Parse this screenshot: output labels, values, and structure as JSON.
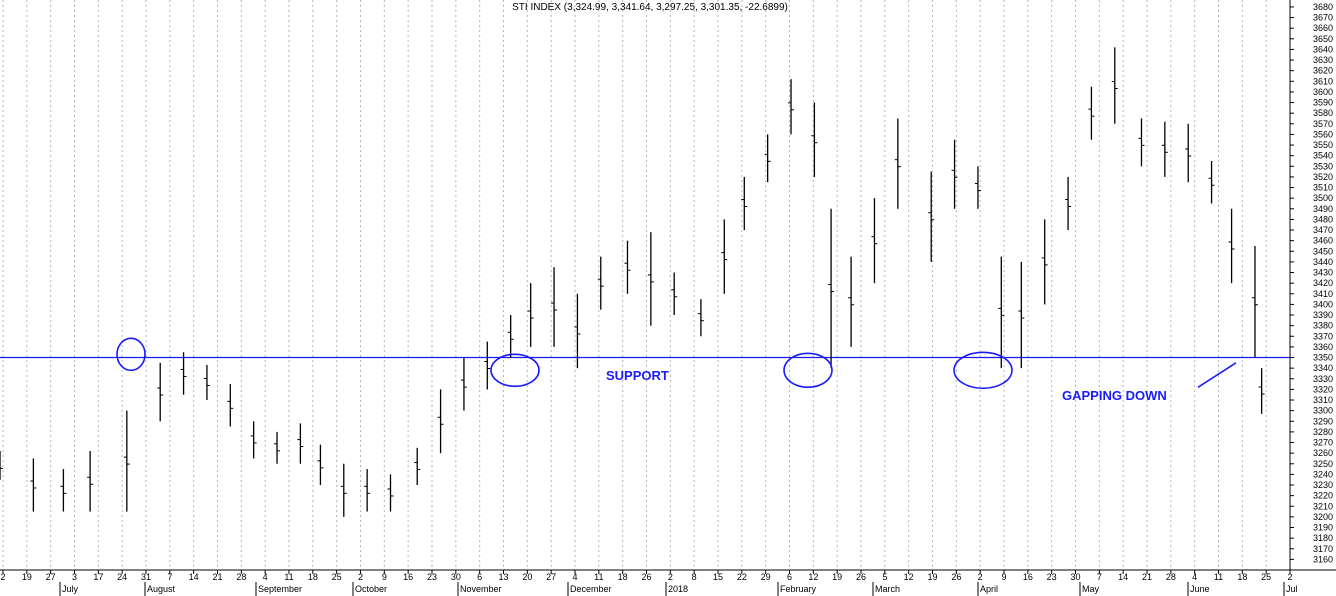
{
  "chart_data": {
    "type": "ohlc",
    "title": "STI INDEX (3,324.99, 3,341.64, 3,297.25, 3,301.35, -22.6899)",
    "ylim": [
      3150,
      3685
    ],
    "y_ticks": [
      3160,
      3170,
      3180,
      3190,
      3200,
      3210,
      3220,
      3230,
      3240,
      3250,
      3260,
      3270,
      3280,
      3290,
      3300,
      3310,
      3320,
      3330,
      3340,
      3350,
      3360,
      3370,
      3380,
      3390,
      3400,
      3410,
      3420,
      3430,
      3440,
      3450,
      3460,
      3470,
      3480,
      3490,
      3500,
      3510,
      3520,
      3530,
      3540,
      3550,
      3560,
      3570,
      3580,
      3590,
      3600,
      3610,
      3620,
      3630,
      3640,
      3650,
      3660,
      3670,
      3680
    ],
    "x_days": [
      "2",
      "19",
      "27",
      "3",
      "17",
      "24",
      "31",
      "7",
      "14",
      "21",
      "28",
      "4",
      "11",
      "18",
      "25",
      "2",
      "9",
      "16",
      "23",
      "30",
      "6",
      "13",
      "20",
      "27",
      "4",
      "11",
      "18",
      "26",
      "2",
      "8",
      "15",
      "22",
      "29",
      "6",
      "12",
      "19",
      "26",
      "5",
      "12",
      "19",
      "26",
      "2",
      "9",
      "16",
      "23",
      "30",
      "7",
      "14",
      "21",
      "28",
      "4",
      "11",
      "18",
      "25",
      "2"
    ],
    "x_months": [
      "July",
      "August",
      "September",
      "October",
      "November",
      "December",
      "2018",
      "February",
      "March",
      "April",
      "May",
      "June",
      "Jul"
    ],
    "support_level": 3350,
    "annotations": [
      "SUPPORT",
      "GAPPING DOWN"
    ],
    "colors": {
      "bars": "#000000",
      "annotation": "#1a1aff",
      "grid": "#b5b5b5"
    },
    "series": [
      {
        "date": "2017-06-30",
        "high": 3262,
        "low": 3235
      },
      {
        "date": "2017-07-10",
        "high": 3255,
        "low": 3205
      },
      {
        "date": "2017-07-19",
        "high": 3245,
        "low": 3205
      },
      {
        "date": "2017-07-27",
        "high": 3262,
        "low": 3205
      },
      {
        "date": "2017-08-07",
        "high": 3300,
        "low": 3205
      },
      {
        "date": "2017-08-17",
        "high": 3345,
        "low": 3290
      },
      {
        "date": "2017-08-24",
        "high": 3355,
        "low": 3315
      },
      {
        "date": "2017-08-31",
        "high": 3343,
        "low": 3310
      },
      {
        "date": "2017-09-07",
        "high": 3325,
        "low": 3285
      },
      {
        "date": "2017-09-14",
        "high": 3290,
        "low": 3255
      },
      {
        "date": "2017-09-21",
        "high": 3280,
        "low": 3250
      },
      {
        "date": "2017-09-28",
        "high": 3288,
        "low": 3250
      },
      {
        "date": "2017-10-04",
        "high": 3268,
        "low": 3230
      },
      {
        "date": "2017-10-11",
        "high": 3250,
        "low": 3200
      },
      {
        "date": "2017-10-18",
        "high": 3245,
        "low": 3205
      },
      {
        "date": "2017-10-25",
        "high": 3240,
        "low": 3205
      },
      {
        "date": "2017-11-02",
        "high": 3265,
        "low": 3230
      },
      {
        "date": "2017-11-09",
        "high": 3320,
        "low": 3260
      },
      {
        "date": "2017-11-16",
        "high": 3350,
        "low": 3300
      },
      {
        "date": "2017-11-23",
        "high": 3365,
        "low": 3320
      },
      {
        "date": "2017-11-30",
        "high": 3390,
        "low": 3350
      },
      {
        "date": "2017-12-06",
        "high": 3420,
        "low": 3360
      },
      {
        "date": "2017-12-13",
        "high": 3435,
        "low": 3360
      },
      {
        "date": "2017-12-20",
        "high": 3410,
        "low": 3340
      },
      {
        "date": "2017-12-27",
        "high": 3445,
        "low": 3395
      },
      {
        "date": "2018-01-04",
        "high": 3460,
        "low": 3410
      },
      {
        "date": "2018-01-11",
        "high": 3468,
        "low": 3380
      },
      {
        "date": "2018-01-18",
        "high": 3430,
        "low": 3390
      },
      {
        "date": "2018-01-26",
        "high": 3405,
        "low": 3370
      },
      {
        "date": "2018-02-02",
        "high": 3480,
        "low": 3410
      },
      {
        "date": "2018-02-08",
        "high": 3520,
        "low": 3470
      },
      {
        "date": "2018-02-15",
        "high": 3560,
        "low": 3515
      },
      {
        "date": "2018-02-22",
        "high": 3612,
        "low": 3560
      },
      {
        "date": "2018-02-29",
        "high": 3590,
        "low": 3520
      },
      {
        "date": "2018-03-06",
        "high": 3490,
        "low": 3340
      },
      {
        "date": "2018-03-12",
        "high": 3445,
        "low": 3360
      },
      {
        "date": "2018-03-19",
        "high": 3500,
        "low": 3420
      },
      {
        "date": "2018-03-26",
        "high": 3575,
        "low": 3490
      },
      {
        "date": "2018-04-05",
        "high": 3525,
        "low": 3440
      },
      {
        "date": "2018-04-12",
        "high": 3555,
        "low": 3490
      },
      {
        "date": "2018-04-19",
        "high": 3530,
        "low": 3490
      },
      {
        "date": "2018-04-26",
        "high": 3445,
        "low": 3340
      },
      {
        "date": "2018-05-02",
        "high": 3440,
        "low": 3340
      },
      {
        "date": "2018-05-09",
        "high": 3480,
        "low": 3400
      },
      {
        "date": "2018-05-16",
        "high": 3520,
        "low": 3470
      },
      {
        "date": "2018-05-23",
        "high": 3605,
        "low": 3555
      },
      {
        "date": "2018-05-30",
        "high": 3642,
        "low": 3570
      },
      {
        "date": "2018-06-07",
        "high": 3575,
        "low": 3530
      },
      {
        "date": "2018-06-14",
        "high": 3572,
        "low": 3520
      },
      {
        "date": "2018-06-21",
        "high": 3570,
        "low": 3515
      },
      {
        "date": "2018-06-28",
        "high": 3535,
        "low": 3495
      },
      {
        "date": "2018-07-04",
        "high": 3490,
        "low": 3420
      },
      {
        "date": "2018-07-11",
        "high": 3455,
        "low": 3350
      },
      {
        "date": "2018-07-13",
        "high": 3340,
        "low": 3297
      }
    ]
  }
}
